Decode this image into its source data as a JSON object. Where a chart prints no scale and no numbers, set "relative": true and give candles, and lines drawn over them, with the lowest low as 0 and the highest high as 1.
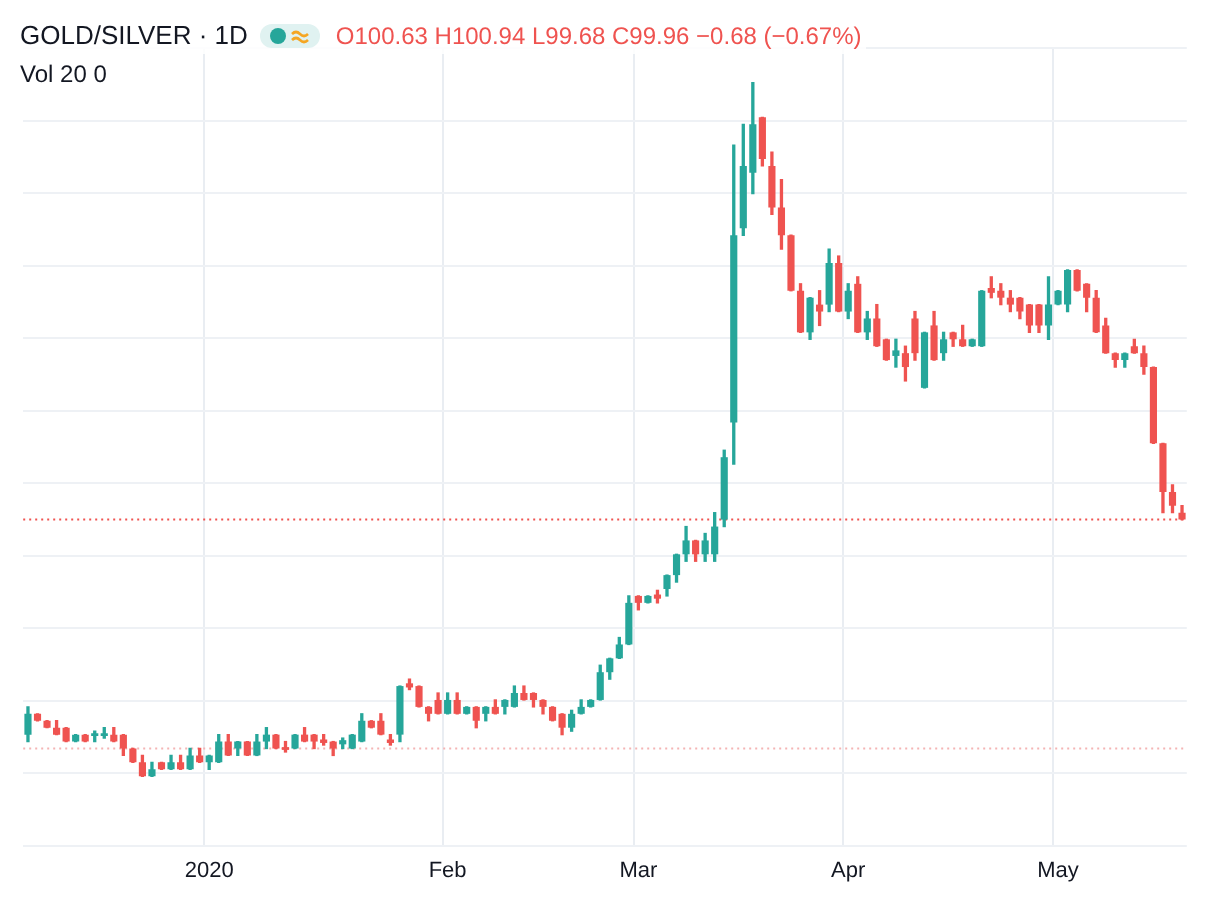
{
  "chart_data": {
    "type": "candlestick",
    "title": "GOLD/SILVER · 1D",
    "relative": true,
    "grid": true,
    "annotations": [
      "O100.63 H100.94 L99.68 C99.96 −0.68 (−0.67%)",
      "Vol 20 0"
    ],
    "categories": [
      null,
      null,
      null,
      null,
      null,
      null,
      null,
      null,
      null,
      null,
      null,
      null,
      null,
      null,
      null,
      null,
      null,
      null,
      null,
      "2020",
      null,
      null,
      null,
      null,
      null,
      null,
      null,
      null,
      null,
      null,
      null,
      null,
      null,
      null,
      null,
      null,
      null,
      null,
      null,
      null,
      null,
      null,
      null,
      null,
      "Feb",
      null,
      null,
      null,
      null,
      null,
      null,
      null,
      null,
      null,
      null,
      null,
      null,
      null,
      null,
      null,
      null,
      null,
      null,
      null,
      "Mar",
      null,
      null,
      null,
      null,
      null,
      null,
      null,
      null,
      null,
      null,
      null,
      null,
      null,
      null,
      null,
      null,
      null,
      null,
      null,
      null,
      null,
      "Apr",
      null,
      null,
      null,
      null,
      null,
      null,
      null,
      null,
      null,
      null,
      null,
      null,
      null,
      null,
      null,
      null,
      null,
      null,
      null,
      null,
      null,
      "May",
      null,
      null,
      null,
      null,
      null,
      null,
      null,
      null,
      null,
      null,
      null,
      null,
      null
    ],
    "ohlc": [
      [
        0.06,
        0.1,
        0.05,
        0.09
      ],
      [
        0.09,
        0.09,
        0.08,
        0.08
      ],
      [
        0.08,
        0.08,
        0.07,
        0.07
      ],
      [
        0.07,
        0.08,
        0.06,
        0.06
      ],
      [
        0.07,
        0.07,
        0.05,
        0.05
      ],
      [
        0.05,
        0.06,
        0.05,
        0.06
      ],
      [
        0.06,
        0.06,
        0.05,
        0.05
      ],
      [
        0.058,
        0.065,
        0.05,
        0.062
      ],
      [
        0.058,
        0.07,
        0.055,
        0.062
      ],
      [
        0.06,
        0.07,
        0.05,
        0.05
      ],
      [
        0.06,
        0.06,
        0.03,
        0.04
      ],
      [
        0.04,
        0.04,
        0.02,
        0.02
      ],
      [
        0.02,
        0.03,
        0,
        0
      ],
      [
        0,
        0.02,
        0,
        0.01
      ],
      [
        0.02,
        0.02,
        0.01,
        0.01
      ],
      [
        0.01,
        0.03,
        0.01,
        0.02
      ],
      [
        0.02,
        0.03,
        0.01,
        0.01
      ],
      [
        0.01,
        0.04,
        0.01,
        0.03
      ],
      [
        0.03,
        0.04,
        0.02,
        0.02
      ],
      [
        0.02,
        0.03,
        0.01,
        0.03
      ],
      [
        0.02,
        0.06,
        0.02,
        0.05
      ],
      [
        0.05,
        0.06,
        0.03,
        0.03
      ],
      [
        0.04,
        0.05,
        0.03,
        0.05
      ],
      [
        0.05,
        0.05,
        0.03,
        0.03
      ],
      [
        0.03,
        0.06,
        0.03,
        0.05
      ],
      [
        0.05,
        0.07,
        0.04,
        0.06
      ],
      [
        0.06,
        0.06,
        0.04,
        0.04
      ],
      [
        0.042,
        0.05,
        0.035,
        0.038
      ],
      [
        0.04,
        0.06,
        0.04,
        0.06
      ],
      [
        0.06,
        0.07,
        0.05,
        0.05
      ],
      [
        0.06,
        0.06,
        0.04,
        0.05
      ],
      [
        0.053,
        0.06,
        0.045,
        0.048
      ],
      [
        0.05,
        0.05,
        0.03,
        0.04
      ],
      [
        0.046,
        0.055,
        0.04,
        0.052
      ],
      [
        0.04,
        0.06,
        0.04,
        0.06
      ],
      [
        0.05,
        0.09,
        0.05,
        0.08
      ],
      [
        0.08,
        0.08,
        0.07,
        0.07
      ],
      [
        0.08,
        0.09,
        0.06,
        0.06
      ],
      [
        0.053,
        0.06,
        0.045,
        0.048
      ],
      [
        0.06,
        0.13,
        0.05,
        0.13
      ],
      [
        0.134,
        0.14,
        0.125,
        0.128
      ],
      [
        0.13,
        0.13,
        0.1,
        0.1
      ],
      [
        0.1,
        0.1,
        0.08,
        0.09
      ],
      [
        0.11,
        0.12,
        0.09,
        0.09
      ],
      [
        0.09,
        0.12,
        0.09,
        0.11
      ],
      [
        0.11,
        0.12,
        0.09,
        0.09
      ],
      [
        0.09,
        0.1,
        0.09,
        0.1
      ],
      [
        0.1,
        0.1,
        0.07,
        0.08
      ],
      [
        0.09,
        0.1,
        0.08,
        0.1
      ],
      [
        0.1,
        0.11,
        0.09,
        0.09
      ],
      [
        0.1,
        0.11,
        0.09,
        0.11
      ],
      [
        0.1,
        0.13,
        0.1,
        0.12
      ],
      [
        0.12,
        0.13,
        0.11,
        0.11
      ],
      [
        0.12,
        0.12,
        0.1,
        0.11
      ],
      [
        0.11,
        0.11,
        0.09,
        0.1
      ],
      [
        0.1,
        0.1,
        0.08,
        0.08
      ],
      [
        0.09,
        0.09,
        0.06,
        0.07
      ],
      [
        0.07,
        0.095,
        0.065,
        0.09
      ],
      [
        0.09,
        0.11,
        0.09,
        0.1
      ],
      [
        0.1,
        0.11,
        0.1,
        0.11
      ],
      [
        0.11,
        0.16,
        0.11,
        0.15
      ],
      [
        0.15,
        0.17,
        0.14,
        0.17
      ],
      [
        0.17,
        0.2,
        0.17,
        0.19
      ],
      [
        0.19,
        0.26,
        0.19,
        0.25
      ],
      [
        0.26,
        0.26,
        0.24,
        0.25
      ],
      [
        0.25,
        0.26,
        0.25,
        0.26
      ],
      [
        0.262,
        0.268,
        0.25,
        0.256
      ],
      [
        0.27,
        0.29,
        0.26,
        0.29
      ],
      [
        0.29,
        0.32,
        0.28,
        0.32
      ],
      [
        0.32,
        0.36,
        0.31,
        0.34
      ],
      [
        0.34,
        0.34,
        0.31,
        0.32
      ],
      [
        0.32,
        0.35,
        0.31,
        0.34
      ],
      [
        0.32,
        0.38,
        0.31,
        0.36
      ],
      [
        0.37,
        0.47,
        0.36,
        0.46
      ],
      [
        0.51,
        0.91,
        0.45,
        0.78
      ],
      [
        0.79,
        0.94,
        0.78,
        0.88
      ],
      [
        0.87,
        1,
        0.84,
        0.94
      ],
      [
        0.95,
        0.95,
        0.88,
        0.89
      ],
      [
        0.88,
        0.9,
        0.81,
        0.82
      ],
      [
        0.82,
        0.86,
        0.76,
        0.78
      ],
      [
        0.78,
        0.78,
        0.7,
        0.7
      ],
      [
        0.7,
        0.71,
        0.64,
        0.64
      ],
      [
        0.64,
        0.69,
        0.63,
        0.69
      ],
      [
        0.68,
        0.7,
        0.65,
        0.67
      ],
      [
        0.68,
        0.76,
        0.67,
        0.74
      ],
      [
        0.74,
        0.75,
        0.67,
        0.67
      ],
      [
        0.67,
        0.71,
        0.66,
        0.7
      ],
      [
        0.71,
        0.72,
        0.64,
        0.64
      ],
      [
        0.64,
        0.67,
        0.63,
        0.66
      ],
      [
        0.66,
        0.68,
        0.62,
        0.62
      ],
      [
        0.63,
        0.63,
        0.6,
        0.6
      ],
      [
        0.606,
        0.63,
        0.59,
        0.614
      ],
      [
        0.61,
        0.62,
        0.57,
        0.59
      ],
      [
        0.66,
        0.67,
        0.6,
        0.61
      ],
      [
        0.56,
        0.64,
        0.56,
        0.64
      ],
      [
        0.65,
        0.67,
        0.6,
        0.6
      ],
      [
        0.61,
        0.64,
        0.6,
        0.63
      ],
      [
        0.64,
        0.64,
        0.62,
        0.63
      ],
      [
        0.63,
        0.65,
        0.62,
        0.62
      ],
      [
        0.62,
        0.63,
        0.62,
        0.63
      ],
      [
        0.62,
        0.7,
        0.62,
        0.7
      ],
      [
        0.704,
        0.72,
        0.69,
        0.697
      ],
      [
        0.7,
        0.71,
        0.68,
        0.69
      ],
      [
        0.69,
        0.7,
        0.67,
        0.68
      ],
      [
        0.69,
        0.69,
        0.66,
        0.67
      ],
      [
        0.68,
        0.68,
        0.64,
        0.65
      ],
      [
        0.68,
        0.68,
        0.64,
        0.65
      ],
      [
        0.65,
        0.72,
        0.63,
        0.68
      ],
      [
        0.68,
        0.7,
        0.68,
        0.7
      ],
      [
        0.68,
        0.73,
        0.67,
        0.73
      ],
      [
        0.73,
        0.73,
        0.7,
        0.7
      ],
      [
        0.71,
        0.71,
        0.67,
        0.69
      ],
      [
        0.69,
        0.7,
        0.64,
        0.64
      ],
      [
        0.65,
        0.66,
        0.61,
        0.61
      ],
      [
        0.61,
        0.61,
        0.59,
        0.6
      ],
      [
        0.6,
        0.61,
        0.59,
        0.61
      ],
      [
        0.62,
        0.63,
        0.61,
        0.61
      ],
      [
        0.61,
        0.62,
        0.58,
        0.59
      ],
      [
        0.59,
        0.59,
        0.48,
        0.48
      ],
      [
        0.48,
        0.48,
        0.38,
        0.41
      ],
      [
        0.41,
        0.42,
        0.38,
        0.39
      ],
      [
        0.38,
        0.39,
        0.37,
        0.37
      ]
    ],
    "ref_lines": [
      {
        "axis": "y",
        "value": 0.37,
        "color": "#ef5350",
        "line_style": "dotted"
      },
      {
        "axis": "y",
        "value": 0.04,
        "color": "#f4b4b4",
        "line_style": "dotted"
      }
    ]
  }
}
